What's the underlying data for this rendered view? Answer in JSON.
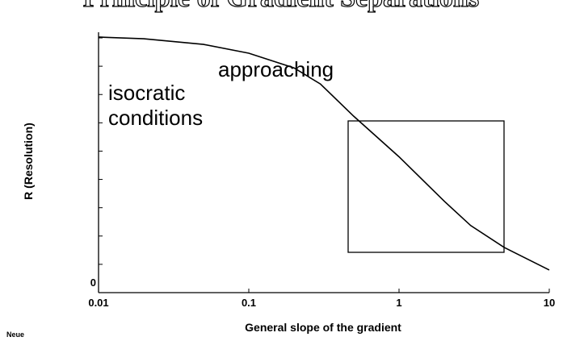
{
  "chart_data": {
    "type": "line",
    "title": "Principle of Gradient Separations",
    "x_label": "General slope of the gradient",
    "y_label": "R (Resolution)",
    "annotation": [
      "approaching",
      "isocratic",
      "conditions"
    ],
    "footnote": "Neue",
    "x": [
      0.01,
      0.02,
      0.05,
      0.1,
      0.2,
      0.3,
      0.5,
      1,
      2,
      3,
      5,
      10
    ],
    "series": [
      {
        "color": "#000000",
        "values": [
          9.03,
          8.97,
          8.77,
          8.46,
          7.94,
          7.37,
          6.23,
          4.8,
          3.23,
          2.37,
          1.6,
          0.8
        ]
      }
    ],
    "xlim": [
      0.01,
      10
    ],
    "xscale": "log",
    "xticks": [
      0.01,
      0.1,
      1,
      10
    ],
    "ylim": [
      0,
      9.2
    ],
    "yticks": [
      0
    ],
    "yminor_ticks": [
      1,
      2,
      3,
      4,
      5,
      6,
      7,
      8,
      9
    ]
  }
}
